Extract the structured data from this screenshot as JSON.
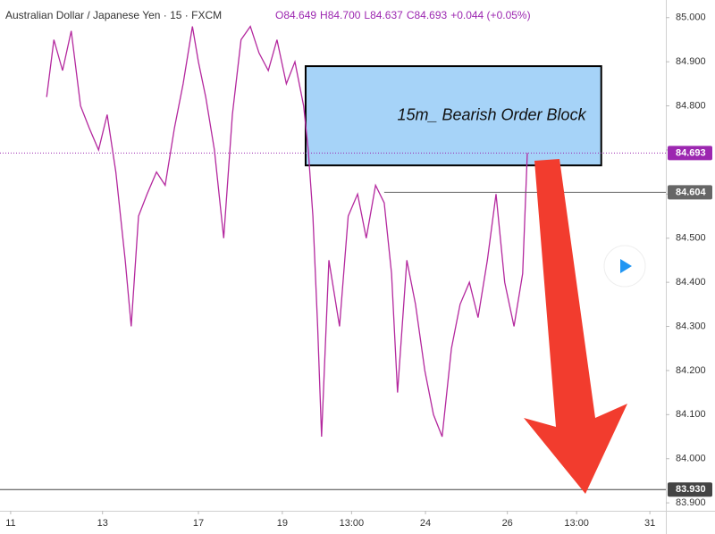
{
  "chart_data": {
    "type": "line",
    "symbol": "Australian Dollar / Japanese Yen · 15 · FXCM",
    "ohlc": [
      "O84.649",
      "H84.700",
      "L84.637",
      "C84.693",
      "+0.044 (+0.05%)"
    ],
    "series": [
      {
        "color": "#b4289e",
        "x": [
          7.0,
          8.1,
          9.4,
          10.7,
          12.1,
          13.4,
          14.8,
          16.1,
          17.4,
          18.8,
          19.7,
          20.8,
          22.1,
          23.5,
          24.8,
          26.2,
          27.5,
          28.9,
          29.8,
          30.9,
          32.2,
          33.6,
          34.9,
          36.2,
          37.6,
          38.9,
          40.3,
          41.6,
          43.0,
          44.3,
          45.6,
          46.3,
          47.0,
          47.7,
          48.3,
          49.4,
          51.0,
          52.3,
          53.7,
          55.0,
          56.4,
          57.7,
          58.8,
          59.7,
          61.1,
          62.4,
          63.8,
          65.1,
          66.4,
          67.8,
          69.1,
          70.5,
          71.8,
          73.2,
          74.5,
          75.8,
          77.2,
          78.5,
          79.2
        ],
        "values": [
          84.82,
          84.95,
          84.88,
          84.97,
          84.8,
          84.75,
          84.7,
          84.78,
          84.65,
          84.45,
          84.3,
          84.55,
          84.6,
          84.65,
          84.62,
          84.75,
          84.85,
          84.98,
          84.9,
          84.82,
          84.7,
          84.5,
          84.78,
          84.95,
          84.98,
          84.92,
          84.88,
          84.95,
          84.85,
          84.9,
          84.8,
          84.7,
          84.55,
          84.3,
          84.05,
          84.45,
          84.3,
          84.55,
          84.6,
          84.5,
          84.62,
          84.58,
          84.42,
          84.15,
          84.45,
          84.35,
          84.2,
          84.1,
          84.05,
          84.25,
          84.35,
          84.4,
          84.32,
          84.45,
          84.6,
          84.4,
          84.3,
          84.42,
          84.693
        ]
      }
    ],
    "xlim": [
      0,
      100
    ],
    "xticks": [
      {
        "value": 1.6,
        "label": "11"
      },
      {
        "value": 15.4,
        "label": "13"
      },
      {
        "value": 29.8,
        "label": "17"
      },
      {
        "value": 42.4,
        "label": "19"
      },
      {
        "value": 52.8,
        "label": "13:00"
      },
      {
        "value": 63.9,
        "label": "24"
      },
      {
        "value": 76.2,
        "label": "26"
      },
      {
        "value": 86.6,
        "label": "13:00"
      },
      {
        "value": 97.6,
        "label": "31"
      }
    ],
    "ylim": [
      83.882,
      85.04
    ],
    "yticks": [
      {
        "value": 83.9,
        "label": "83.900"
      },
      {
        "value": 84.0,
        "label": "84.000"
      },
      {
        "value": 84.1,
        "label": "84.100"
      },
      {
        "value": 84.2,
        "label": "84.200"
      },
      {
        "value": 84.3,
        "label": "84.300"
      },
      {
        "value": 84.4,
        "label": "84.400"
      },
      {
        "value": 84.5,
        "label": "84.500"
      },
      {
        "value": 84.6,
        "label": "84.600"
      },
      {
        "value": 84.7,
        "label": "84.700"
      },
      {
        "value": 84.8,
        "label": "84.800"
      },
      {
        "value": 84.9,
        "label": "84.900"
      },
      {
        "value": 85.0,
        "label": "85.000"
      }
    ],
    "price_lines": [
      {
        "value": 84.693,
        "color": "#9c27b0",
        "from": 0
      },
      {
        "value": 84.604,
        "color": "#666666",
        "from": 57.7
      },
      {
        "value": 83.93,
        "label": "83.930",
        "color": "#444444",
        "from": 0
      }
    ],
    "order_block": {
      "text": "15m_ Bearish Order Block",
      "x": [
        45.9,
        90.3
      ],
      "y": [
        84.665,
        84.89
      ]
    }
  }
}
